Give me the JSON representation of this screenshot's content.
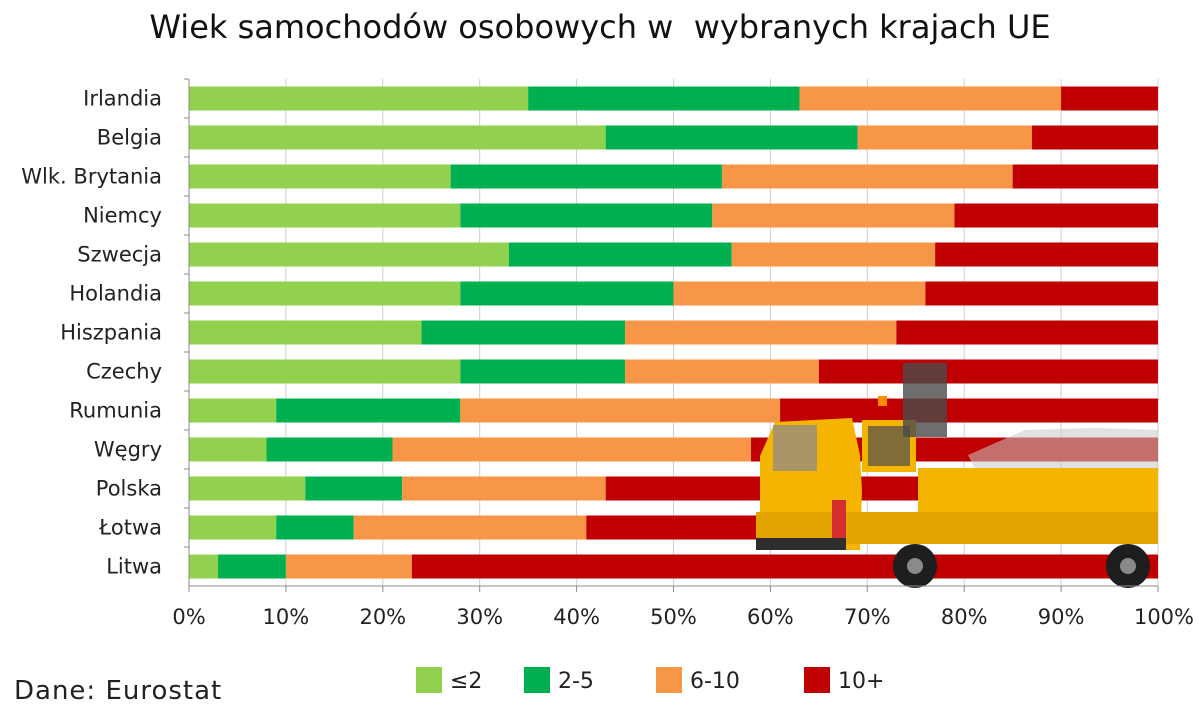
{
  "title": "Wiek samochodów osobowych w  wybranych krajach UE",
  "source": "Dane: Eurostat",
  "chart_data": {
    "type": "bar",
    "orientation": "horizontal",
    "stacked": "percent",
    "title": "Wiek samochodów osobowych w  wybranych krajach UE",
    "xlabel": "",
    "ylabel": "",
    "xlim": [
      0,
      100
    ],
    "xticks": [
      "0%",
      "10%",
      "20%",
      "30%",
      "40%",
      "50%",
      "60%",
      "70%",
      "80%",
      "90%",
      "100%"
    ],
    "grid": "vertical",
    "legend_position": "bottom",
    "categories": [
      "Irlandia",
      "Belgia",
      "Wlk. Brytania",
      "Niemcy",
      "Szwecja",
      "Holandia",
      "Hiszpania",
      "Czechy",
      "Rumunia",
      "Węgry",
      "Polska",
      "Łotwa",
      "Litwa"
    ],
    "series": [
      {
        "name": "≤2",
        "color": "#92d050",
        "values": [
          35,
          43,
          27,
          28,
          33,
          28,
          24,
          28,
          9,
          8,
          12,
          9,
          3
        ]
      },
      {
        "name": "2-5",
        "color": "#00b050",
        "values": [
          28,
          26,
          28,
          26,
          23,
          22,
          21,
          17,
          19,
          13,
          10,
          8,
          7
        ]
      },
      {
        "name": "6-10",
        "color": "#f79646",
        "values": [
          27,
          18,
          30,
          25,
          21,
          26,
          28,
          20,
          33,
          37,
          21,
          24,
          13
        ]
      },
      {
        "name": "10+",
        "color": "#c00000",
        "values": [
          10,
          13,
          15,
          21,
          23,
          24,
          27,
          35,
          39,
          42,
          57,
          59,
          77
        ]
      }
    ]
  },
  "image": {
    "icon": "tow-truck-icon"
  }
}
